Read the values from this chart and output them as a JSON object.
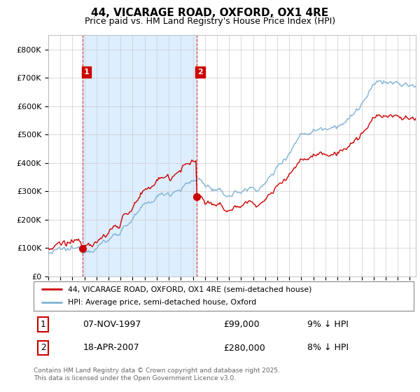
{
  "title": "44, VICARAGE ROAD, OXFORD, OX1 4RE",
  "subtitle": "Price paid vs. HM Land Registry's House Price Index (HPI)",
  "legend_line1": "44, VICARAGE ROAD, OXFORD, OX1 4RE (semi-detached house)",
  "legend_line2": "HPI: Average price, semi-detached house, Oxford",
  "transaction1_label": "1",
  "transaction1_date": "07-NOV-1997",
  "transaction1_price": "£99,000",
  "transaction1_hpi": "9% ↓ HPI",
  "transaction2_label": "2",
  "transaction2_date": "18-APR-2007",
  "transaction2_price": "£280,000",
  "transaction2_hpi": "8% ↓ HPI",
  "footer": "Contains HM Land Registry data © Crown copyright and database right 2025.\nThis data is licensed under the Open Government Licence v3.0.",
  "red_color": "#cc0000",
  "blue_color": "#7fb3d3",
  "shade_color": "#ddeeff",
  "background_color": "#ffffff",
  "grid_color": "#cccccc",
  "label_box_color": "#cc0000",
  "ylim": [
    0,
    850000
  ],
  "yticks": [
    0,
    100000,
    200000,
    300000,
    400000,
    500000,
    600000,
    700000,
    800000
  ],
  "ytick_labels": [
    "£0",
    "£100K",
    "£200K",
    "£300K",
    "£400K",
    "£500K",
    "£600K",
    "£700K",
    "£800K"
  ],
  "transaction1_x": 1997.85,
  "transaction1_y": 99000,
  "transaction2_x": 2007.3,
  "transaction2_y": 280000,
  "xmin": 1995.0,
  "xmax": 2025.5
}
